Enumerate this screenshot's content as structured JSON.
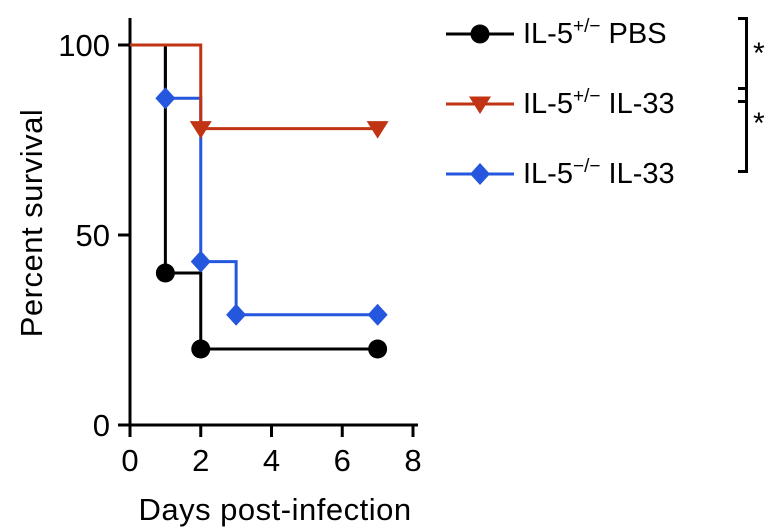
{
  "chart_data": {
    "type": "line",
    "subtype": "kaplan-meier-step",
    "title": "",
    "xlabel": "Days post-infection",
    "ylabel": "Percent survival",
    "xlim": [
      0,
      8
    ],
    "ylim": [
      0,
      100
    ],
    "xticks": [
      0,
      2,
      4,
      6,
      8
    ],
    "yticks": [
      0,
      50,
      100
    ],
    "grid": false,
    "legend_position": "top-right",
    "axis_color": "#000000",
    "line_width": 3,
    "series": [
      {
        "name": "IL-5+/- PBS",
        "label": {
          "pre": "IL-5",
          "sup": "+/−",
          "post": " PBS"
        },
        "color": "#000000",
        "marker": "circle",
        "steps": [
          [
            0,
            100
          ],
          [
            1,
            100
          ],
          [
            1,
            40
          ],
          [
            2,
            40
          ],
          [
            2,
            20
          ],
          [
            7,
            20
          ]
        ],
        "markers": [
          [
            1,
            40
          ],
          [
            2,
            20
          ],
          [
            7,
            20
          ]
        ]
      },
      {
        "name": "IL-5+/- IL-33",
        "label": {
          "pre": "IL-5",
          "sup": "+/−",
          "post": " IL-33"
        },
        "color": "#C03414",
        "marker": "triangle-down",
        "steps": [
          [
            0,
            100
          ],
          [
            2,
            100
          ],
          [
            2,
            78
          ],
          [
            7,
            78
          ]
        ],
        "markers": [
          [
            2,
            78
          ],
          [
            7,
            78
          ]
        ]
      },
      {
        "name": "IL-5-/- IL-33",
        "label": {
          "pre": "IL-5",
          "sup": "−/−",
          "post": " IL-33"
        },
        "color": "#2457DE",
        "marker": "diamond",
        "steps": [
          [
            0,
            100
          ],
          [
            1,
            100
          ],
          [
            1,
            86
          ],
          [
            2,
            86
          ],
          [
            2,
            43
          ],
          [
            3,
            43
          ],
          [
            3,
            29
          ],
          [
            7,
            29
          ]
        ],
        "markers": [
          [
            1,
            86
          ],
          [
            2,
            43
          ],
          [
            3,
            29
          ],
          [
            7,
            29
          ]
        ]
      }
    ],
    "significance": [
      {
        "rows": [
          0,
          1
        ],
        "symbol": "*"
      },
      {
        "rows": [
          1,
          2
        ],
        "symbol": "*"
      }
    ]
  }
}
